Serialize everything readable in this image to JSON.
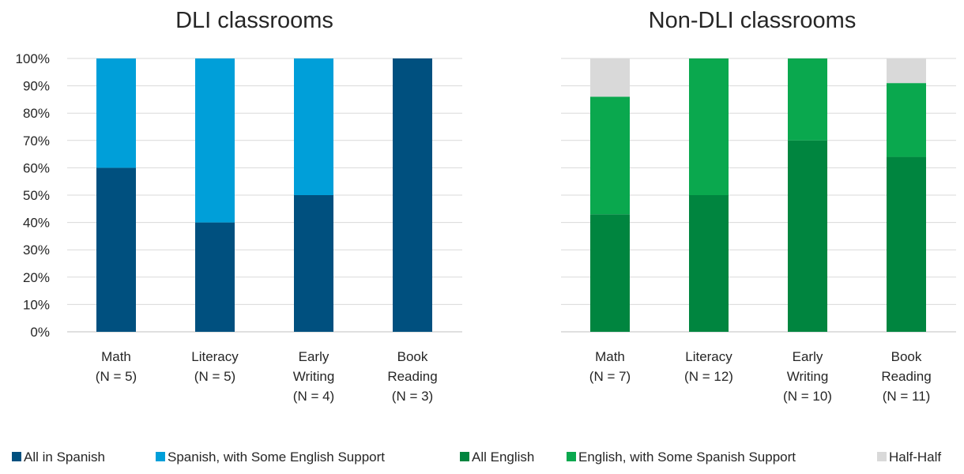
{
  "chart_data": {
    "type": "bar",
    "stacked": true,
    "ylim": [
      0,
      100
    ],
    "yticks": [
      "0%",
      "10%",
      "20%",
      "30%",
      "40%",
      "50%",
      "60%",
      "70%",
      "80%",
      "90%",
      "100%"
    ],
    "grid": true,
    "legend_position": "bottom",
    "panels": [
      {
        "title": "DLI classrooms",
        "categories": [
          [
            "Math",
            "(N = 5)"
          ],
          [
            "Literacy",
            "(N = 5)"
          ],
          [
            "Early",
            "Writing",
            "(N = 4)"
          ],
          [
            "Book",
            "Reading",
            "(N = 3)"
          ]
        ],
        "series": [
          {
            "name": "All in Spanish",
            "color": "#00507f",
            "values": [
              60,
              40,
              50,
              100
            ]
          },
          {
            "name": "Spanish, with Some English Support",
            "color": "#009fd9",
            "values": [
              40,
              60,
              50,
              0
            ]
          }
        ]
      },
      {
        "title": "Non-DLI classrooms",
        "categories": [
          [
            "Math",
            "(N = 7)"
          ],
          [
            "Literacy",
            "(N = 12)"
          ],
          [
            "Early",
            "Writing",
            "(N = 10)"
          ],
          [
            "Book",
            "Reading",
            "(N = 11)"
          ]
        ],
        "series": [
          {
            "name": "All English",
            "color": "#00853f",
            "values": [
              43,
              50,
              70,
              64
            ]
          },
          {
            "name": "English, with Some Spanish Support",
            "color": "#0aa84e",
            "values": [
              43,
              50,
              30,
              27
            ]
          },
          {
            "name": "Half-Half",
            "color": "#d9d9d9",
            "values": [
              14,
              0,
              0,
              9
            ]
          }
        ]
      }
    ],
    "legend": [
      {
        "name": "All in Spanish",
        "color": "#00507f"
      },
      {
        "name": "Spanish, with Some English Support",
        "color": "#009fd9"
      },
      {
        "name": "All English",
        "color": "#00853f"
      },
      {
        "name": "English, with Some Spanish Support",
        "color": "#0aa84e"
      },
      {
        "name": "Half-Half",
        "color": "#d9d9d9"
      }
    ]
  }
}
